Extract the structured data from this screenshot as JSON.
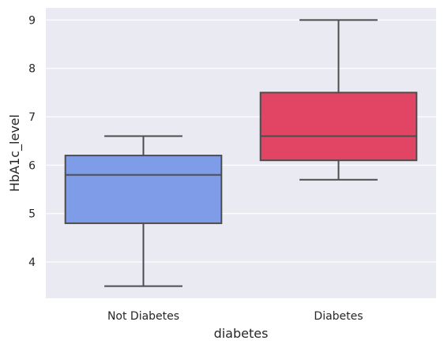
{
  "chart_data": {
    "type": "box",
    "title": "",
    "xlabel": "diabetes",
    "ylabel": "HbA1c_level",
    "ylim": [
      3.25,
      9.25
    ],
    "yticks": [
      4,
      5,
      6,
      7,
      8,
      9
    ],
    "grid": true,
    "categories": [
      "Not Diabetes",
      "Diabetes"
    ],
    "boxes": [
      {
        "category": "Not Diabetes",
        "whisker_low": 3.5,
        "q1": 4.8,
        "median": 5.8,
        "q3": 6.2,
        "whisker_high": 6.6,
        "color": "#7f9ce9"
      },
      {
        "category": "Diabetes",
        "whisker_low": 5.7,
        "q1": 6.1,
        "median": 6.6,
        "q3": 7.5,
        "whisker_high": 9.0,
        "color": "#e24563"
      }
    ],
    "background_color": "#eaeaf2",
    "grid_color": "#ffffff",
    "line_color": "#4d4d4d"
  }
}
